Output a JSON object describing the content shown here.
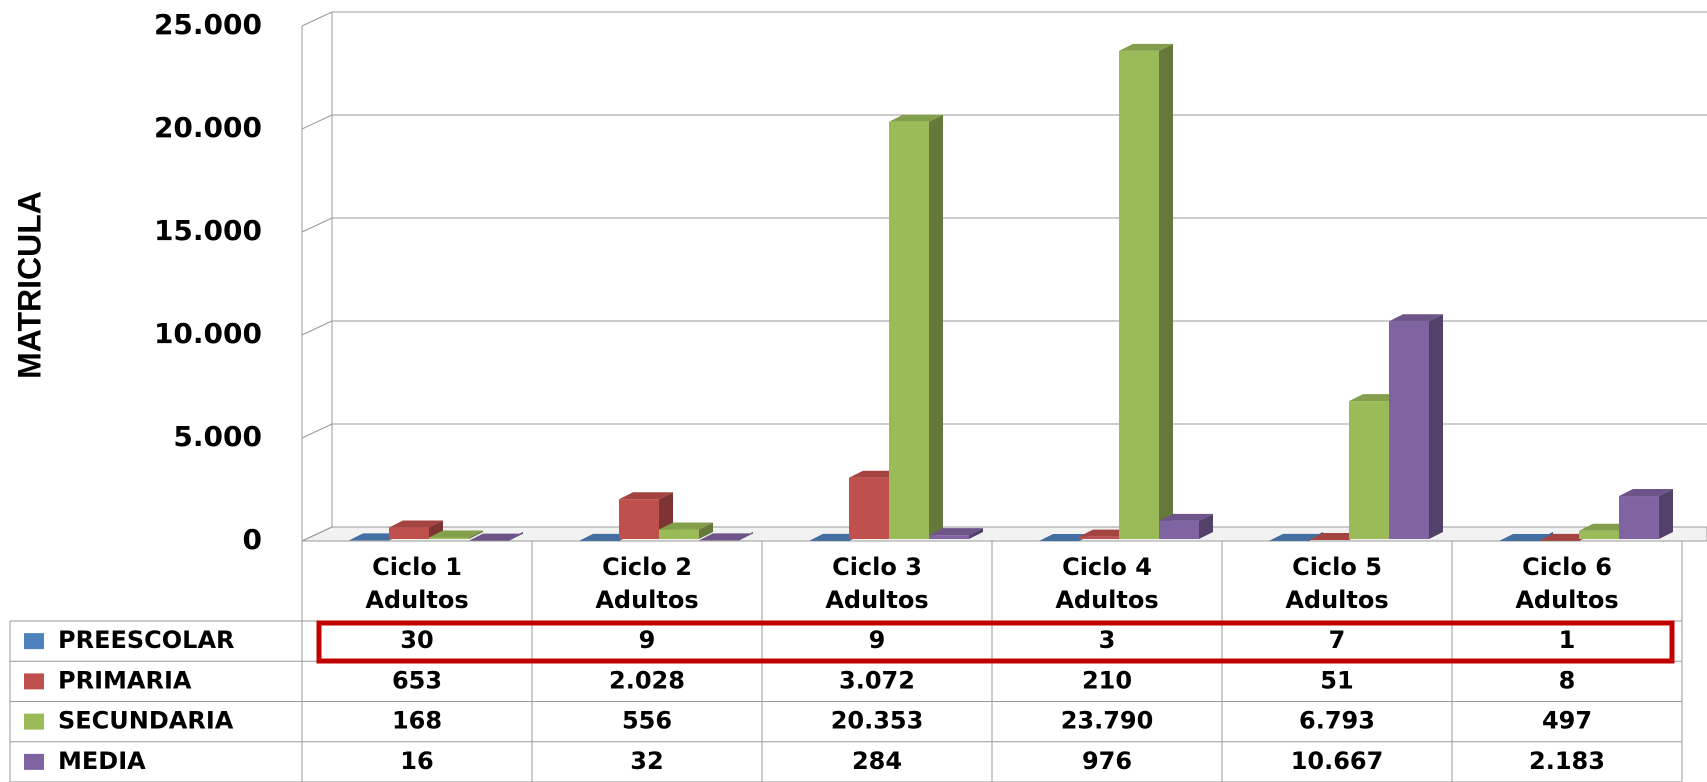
{
  "chart_data": {
    "type": "bar",
    "y_axis_label": "MATRICULA",
    "categories": [
      "Ciclo 1 Adultos",
      "Ciclo 2 Adultos",
      "Ciclo 3 Adultos",
      "Ciclo 4 Adultos",
      "Ciclo 5 Adultos",
      "Ciclo 6 Adultos"
    ],
    "series": [
      {
        "name": "PREESCOLAR",
        "color": "#4f81bd",
        "values": [
          30,
          9,
          9,
          3,
          7,
          1
        ],
        "value_labels": [
          "30",
          "9",
          "9",
          "3",
          "7",
          "1"
        ]
      },
      {
        "name": "PRIMARIA",
        "color": "#c0504d",
        "values": [
          653,
          2028,
          3072,
          210,
          51,
          8
        ],
        "value_labels": [
          "653",
          "2.028",
          "3.072",
          "210",
          "51",
          "8"
        ]
      },
      {
        "name": "SECUNDARIA",
        "color": "#9bbb59",
        "values": [
          168,
          556,
          20353,
          23790,
          6793,
          497
        ],
        "value_labels": [
          "168",
          "556",
          "20.353",
          "23.790",
          "6.793",
          "497"
        ]
      },
      {
        "name": "MEDIA",
        "color": "#8064a2",
        "values": [
          16,
          32,
          284,
          976,
          10667,
          2183
        ],
        "value_labels": [
          "16",
          "32",
          "284",
          "976",
          "10.667",
          "2.183"
        ]
      }
    ],
    "ylim": [
      0,
      25000
    ],
    "yticks": [
      0,
      {
        "value": 5000,
        "label": "5.000"
      },
      {
        "value": 10000,
        "label": "10.000"
      },
      {
        "value": 15000,
        "label": "15.000"
      },
      {
        "value": 20000,
        "label": "20.000"
      },
      {
        "value": 25000,
        "label": "25.000"
      }
    ],
    "grid": true
  }
}
